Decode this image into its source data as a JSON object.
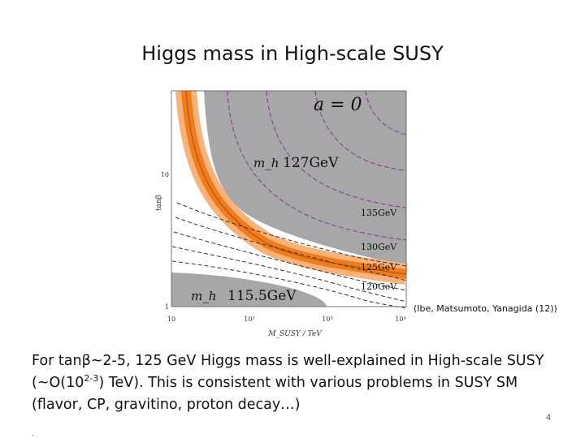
{
  "slide": {
    "title": "Higgs mass in High-scale SUSY",
    "citation": "(Ibe, Matsumoto, Yanagida (12))",
    "body": {
      "part1": "For tanβ~2-5, 125 GeV Higgs mass is well-explained in High-scale SUSY (~O(10",
      "sup": "2-3",
      "part2": ") TeV). This is consistent with various problems in SUSY SM (flavor, CP, gravitino, proton decay…)"
    },
    "page_number": "4",
    "footer_mark": "."
  },
  "figure": {
    "panel_label": "a = 0",
    "ylabel": "tanβ",
    "xlabel": "M_SUSY / TeV",
    "y_ticks": [
      "10",
      "1"
    ],
    "x_ticks": [
      "10",
      "10²",
      "10³",
      "10⁴"
    ],
    "region_labels": {
      "upper": {
        "symbol": "m_h",
        "value": "127GeV"
      },
      "lower": {
        "symbol": "m_h",
        "value": "115.5GeV"
      }
    },
    "contour_labels": [
      "135GeV",
      "130GeV",
      "125GeV",
      "120GeV"
    ],
    "colors": {
      "excluded_gray": "#a7a7a9",
      "band_dark_orange": "#f07d1c",
      "band_light_orange": "#f9b37a",
      "contour_purple": "#7d3a8c"
    }
  }
}
